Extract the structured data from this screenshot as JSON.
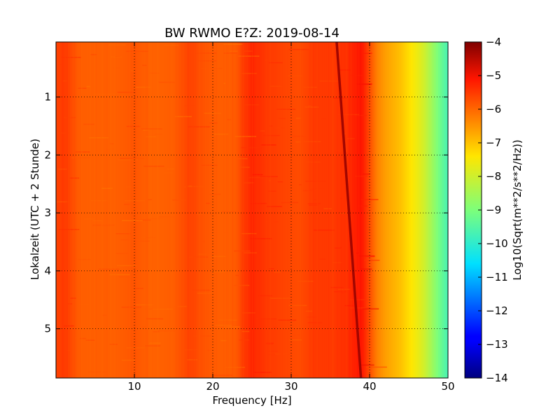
{
  "chart_data": {
    "type": "heatmap",
    "title": "BW RWMO E?Z: 2019-08-14",
    "xlabel": "Frequency [Hz]",
    "ylabel": "Lokalzeit (UTC + 2 Stunde)",
    "xlim": [
      0,
      50
    ],
    "ylim": [
      5.85,
      0.05
    ],
    "x_ticks": [
      10,
      20,
      30,
      40,
      50
    ],
    "y_ticks": [
      1,
      2,
      3,
      4,
      5
    ],
    "grid": true,
    "colormap": "jet",
    "colorbar": {
      "label": "Log10(Sqrt(m**2/s**2/Hz))",
      "range": [
        -14,
        -4
      ],
      "ticks": [
        -4,
        -5,
        -6,
        -7,
        -8,
        -9,
        -10,
        -11,
        -12,
        -13,
        -14
      ]
    },
    "frequency_profile": {
      "frequency_hz": [
        0,
        1,
        3,
        5,
        8,
        10,
        12,
        15,
        17,
        19,
        21,
        23,
        24,
        25,
        27,
        29,
        31,
        33,
        35,
        37,
        39,
        40,
        41,
        42,
        43,
        44,
        45,
        46,
        47,
        48,
        49,
        50
      ],
      "log10_amplitude": [
        -5.6,
        -5.5,
        -5.9,
        -5.9,
        -5.9,
        -5.8,
        -5.95,
        -5.9,
        -5.6,
        -5.8,
        -5.9,
        -5.85,
        -5.5,
        -5.3,
        -5.5,
        -5.6,
        -5.7,
        -5.5,
        -5.5,
        -5.4,
        -5.1,
        -5.7,
        -6.3,
        -6.6,
        -6.8,
        -7.0,
        -7.3,
        -7.6,
        -8.0,
        -8.6,
        -9.2,
        -9.7
      ]
    },
    "drifting_line": {
      "start": {
        "time": 0.05,
        "frequency_hz": 35.8
      },
      "end": {
        "time": 5.85,
        "frequency_hz": 38.9
      },
      "log10_amplitude": -4.3
    }
  }
}
